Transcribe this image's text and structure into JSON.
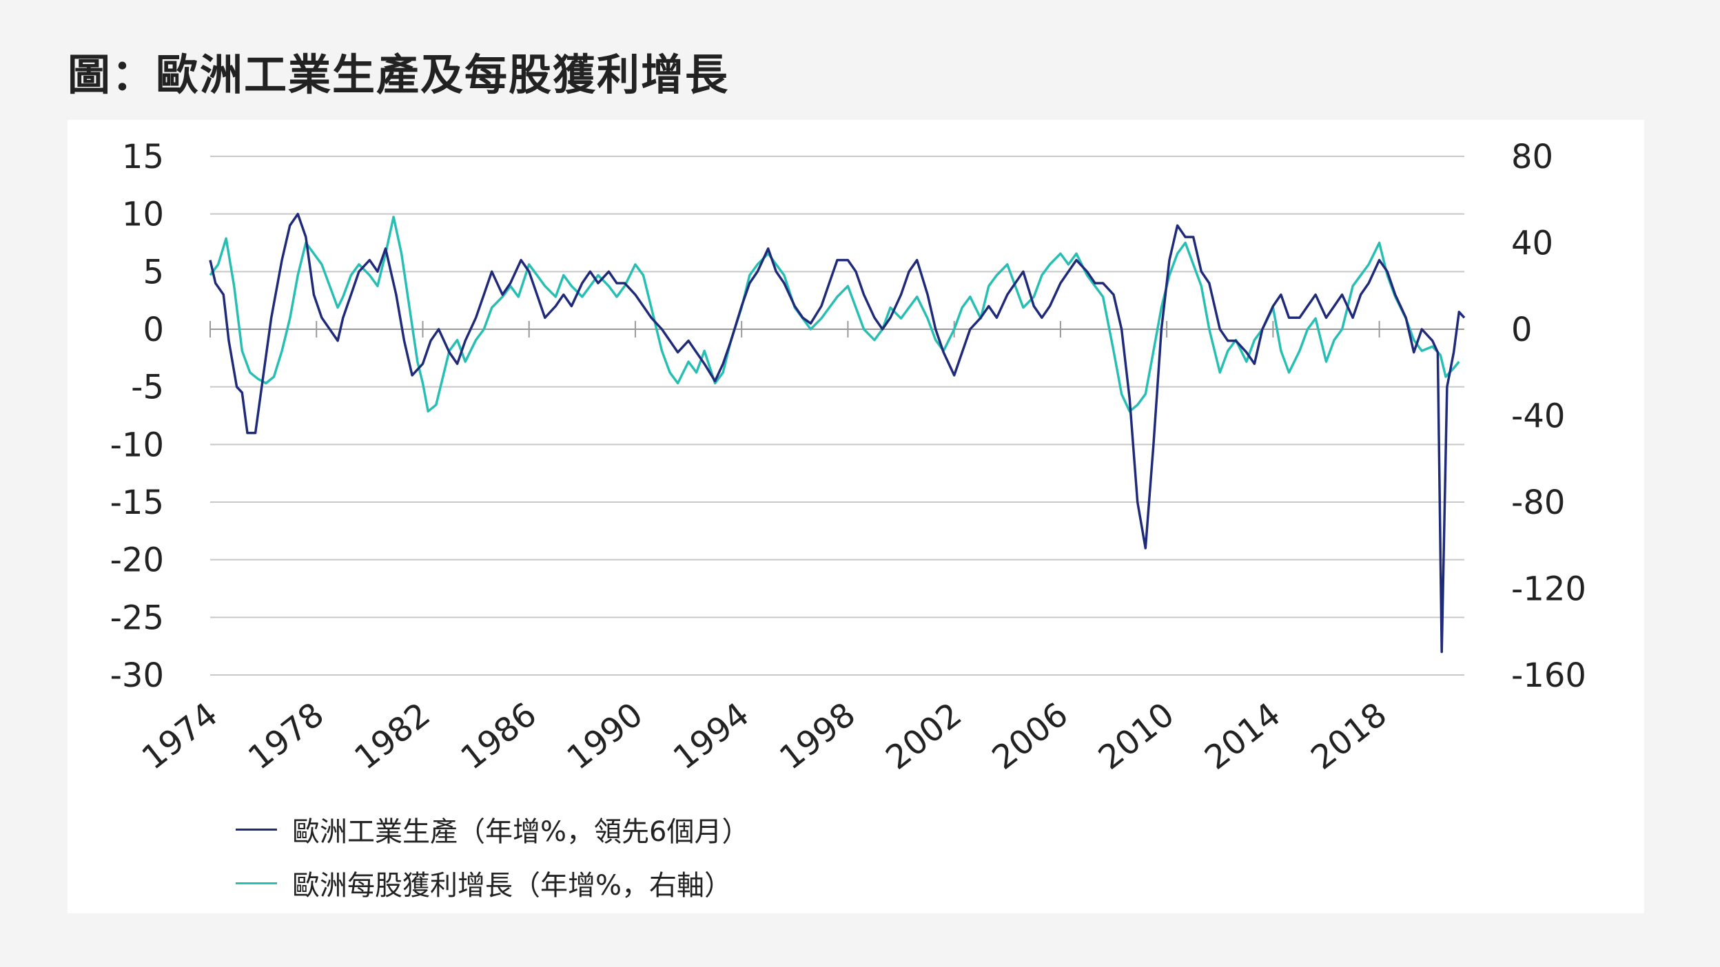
{
  "title": "圖：歐洲工業生產及每股獲利增長",
  "chart_data": {
    "type": "line",
    "title": "圖：歐洲工業生產及每股獲利增長",
    "x_ticks": [
      "1974",
      "1978",
      "1982",
      "1986",
      "1990",
      "1994",
      "1998",
      "2002",
      "2006",
      "2010",
      "2014",
      "2018"
    ],
    "xlim": [
      1974.0,
      2021.2
    ],
    "y_left": {
      "ticks": [
        "15",
        "10",
        "5",
        "0",
        "-5",
        "-10",
        "-15",
        "-20",
        "-25",
        "-30"
      ],
      "ylim": [
        -30,
        15
      ]
    },
    "y_right": {
      "ticks": [
        "80",
        "40",
        "0",
        "-40",
        "-80",
        "-120",
        "-160"
      ],
      "ylim": [
        -160,
        80
      ]
    },
    "grid": "horizontal",
    "legend_position": "bottom-left",
    "series": [
      {
        "name": "歐洲工業生產（年增%，領先6個月）",
        "axis": "left",
        "color": "#1f2a7a",
        "points": [
          [
            1974.0,
            6
          ],
          [
            1974.2,
            4
          ],
          [
            1974.5,
            3
          ],
          [
            1974.7,
            -1
          ],
          [
            1975.0,
            -5
          ],
          [
            1975.2,
            -5.5
          ],
          [
            1975.4,
            -9
          ],
          [
            1975.7,
            -9
          ],
          [
            1976.0,
            -4
          ],
          [
            1976.3,
            1
          ],
          [
            1976.7,
            6
          ],
          [
            1977.0,
            9
          ],
          [
            1977.3,
            10
          ],
          [
            1977.6,
            8
          ],
          [
            1977.9,
            3
          ],
          [
            1978.2,
            1
          ],
          [
            1978.5,
            0
          ],
          [
            1978.8,
            -1
          ],
          [
            1979.0,
            1
          ],
          [
            1979.3,
            3
          ],
          [
            1979.6,
            5
          ],
          [
            1980.0,
            6
          ],
          [
            1980.3,
            5
          ],
          [
            1980.6,
            7
          ],
          [
            1981.0,
            3
          ],
          [
            1981.3,
            -1
          ],
          [
            1981.6,
            -4
          ],
          [
            1982.0,
            -3
          ],
          [
            1982.3,
            -1
          ],
          [
            1982.6,
            0
          ],
          [
            1983.0,
            -2
          ],
          [
            1983.3,
            -3
          ],
          [
            1983.6,
            -1
          ],
          [
            1984.0,
            1
          ],
          [
            1984.3,
            3
          ],
          [
            1984.6,
            5
          ],
          [
            1985.0,
            3
          ],
          [
            1985.3,
            4
          ],
          [
            1985.7,
            6
          ],
          [
            1986.0,
            5
          ],
          [
            1986.3,
            3
          ],
          [
            1986.6,
            1
          ],
          [
            1987.0,
            2
          ],
          [
            1987.3,
            3
          ],
          [
            1987.6,
            2
          ],
          [
            1988.0,
            4
          ],
          [
            1988.3,
            5
          ],
          [
            1988.6,
            4
          ],
          [
            1989.0,
            5
          ],
          [
            1989.3,
            4
          ],
          [
            1989.6,
            4
          ],
          [
            1990.0,
            3
          ],
          [
            1990.3,
            2
          ],
          [
            1990.6,
            1
          ],
          [
            1991.0,
            0
          ],
          [
            1991.3,
            -1
          ],
          [
            1991.6,
            -2
          ],
          [
            1992.0,
            -1
          ],
          [
            1992.3,
            -2
          ],
          [
            1992.6,
            -3
          ],
          [
            1993.0,
            -4.5
          ],
          [
            1993.3,
            -3
          ],
          [
            1993.6,
            -1
          ],
          [
            1994.0,
            2
          ],
          [
            1994.3,
            4
          ],
          [
            1994.6,
            5
          ],
          [
            1995.0,
            7
          ],
          [
            1995.3,
            5
          ],
          [
            1995.6,
            4
          ],
          [
            1996.0,
            2
          ],
          [
            1996.3,
            1
          ],
          [
            1996.6,
            0.5
          ],
          [
            1997.0,
            2
          ],
          [
            1997.3,
            4
          ],
          [
            1997.6,
            6
          ],
          [
            1998.0,
            6
          ],
          [
            1998.3,
            5
          ],
          [
            1998.6,
            3
          ],
          [
            1999.0,
            1
          ],
          [
            1999.3,
            0
          ],
          [
            1999.6,
            1
          ],
          [
            2000.0,
            3
          ],
          [
            2000.3,
            5
          ],
          [
            2000.6,
            6
          ],
          [
            2001.0,
            3
          ],
          [
            2001.3,
            0
          ],
          [
            2001.6,
            -2
          ],
          [
            2002.0,
            -4
          ],
          [
            2002.3,
            -2
          ],
          [
            2002.6,
            0
          ],
          [
            2003.0,
            1
          ],
          [
            2003.3,
            2
          ],
          [
            2003.6,
            1
          ],
          [
            2004.0,
            3
          ],
          [
            2004.3,
            4
          ],
          [
            2004.6,
            5
          ],
          [
            2005.0,
            2
          ],
          [
            2005.3,
            1
          ],
          [
            2005.6,
            2
          ],
          [
            2006.0,
            4
          ],
          [
            2006.3,
            5
          ],
          [
            2006.6,
            6
          ],
          [
            2007.0,
            5
          ],
          [
            2007.3,
            4
          ],
          [
            2007.6,
            4
          ],
          [
            2008.0,
            3
          ],
          [
            2008.3,
            0
          ],
          [
            2008.6,
            -6
          ],
          [
            2008.9,
            -15
          ],
          [
            2009.2,
            -19
          ],
          [
            2009.5,
            -10
          ],
          [
            2009.8,
            0
          ],
          [
            2010.1,
            6
          ],
          [
            2010.4,
            9
          ],
          [
            2010.7,
            8
          ],
          [
            2011.0,
            8
          ],
          [
            2011.3,
            5
          ],
          [
            2011.6,
            4
          ],
          [
            2012.0,
            0
          ],
          [
            2012.3,
            -1
          ],
          [
            2012.6,
            -1
          ],
          [
            2013.0,
            -2
          ],
          [
            2013.3,
            -3
          ],
          [
            2013.6,
            0
          ],
          [
            2014.0,
            2
          ],
          [
            2014.3,
            3
          ],
          [
            2014.6,
            1
          ],
          [
            2015.0,
            1
          ],
          [
            2015.3,
            2
          ],
          [
            2015.6,
            3
          ],
          [
            2016.0,
            1
          ],
          [
            2016.3,
            2
          ],
          [
            2016.6,
            3
          ],
          [
            2017.0,
            1
          ],
          [
            2017.3,
            3
          ],
          [
            2017.6,
            4
          ],
          [
            2018.0,
            6
          ],
          [
            2018.3,
            5
          ],
          [
            2018.6,
            3
          ],
          [
            2019.0,
            1
          ],
          [
            2019.3,
            -2
          ],
          [
            2019.6,
            0
          ],
          [
            2020.0,
            -1
          ],
          [
            2020.2,
            -2
          ],
          [
            2020.35,
            -28
          ],
          [
            2020.55,
            -5
          ],
          [
            2020.8,
            -2
          ],
          [
            2021.0,
            1.5
          ],
          [
            2021.2,
            1
          ]
        ]
      },
      {
        "name": "歐洲每股獲利增長（年增%，右軸）",
        "axis": "right",
        "color": "#27bfb3",
        "points": [
          [
            1974.0,
            25
          ],
          [
            1974.3,
            30
          ],
          [
            1974.6,
            42
          ],
          [
            1974.9,
            20
          ],
          [
            1975.2,
            -10
          ],
          [
            1975.5,
            -20
          ],
          [
            1975.8,
            -23
          ],
          [
            1976.1,
            -25
          ],
          [
            1976.4,
            -22
          ],
          [
            1976.7,
            -10
          ],
          [
            1977.0,
            5
          ],
          [
            1977.3,
            25
          ],
          [
            1977.6,
            40
          ],
          [
            1977.9,
            35
          ],
          [
            1978.2,
            30
          ],
          [
            1978.5,
            20
          ],
          [
            1978.8,
            10
          ],
          [
            1979.0,
            15
          ],
          [
            1979.3,
            25
          ],
          [
            1979.6,
            30
          ],
          [
            1980.0,
            25
          ],
          [
            1980.3,
            20
          ],
          [
            1980.6,
            35
          ],
          [
            1980.9,
            52
          ],
          [
            1981.2,
            35
          ],
          [
            1981.5,
            10
          ],
          [
            1981.8,
            -15
          ],
          [
            1982.0,
            -25
          ],
          [
            1982.2,
            -38
          ],
          [
            1982.5,
            -35
          ],
          [
            1982.8,
            -20
          ],
          [
            1983.0,
            -10
          ],
          [
            1983.3,
            -5
          ],
          [
            1983.6,
            -15
          ],
          [
            1984.0,
            -5
          ],
          [
            1984.3,
            0
          ],
          [
            1984.6,
            10
          ],
          [
            1985.0,
            15
          ],
          [
            1985.3,
            20
          ],
          [
            1985.6,
            15
          ],
          [
            1986.0,
            30
          ],
          [
            1986.3,
            25
          ],
          [
            1986.6,
            20
          ],
          [
            1987.0,
            15
          ],
          [
            1987.3,
            25
          ],
          [
            1987.6,
            20
          ],
          [
            1988.0,
            15
          ],
          [
            1988.3,
            20
          ],
          [
            1988.6,
            25
          ],
          [
            1989.0,
            20
          ],
          [
            1989.3,
            15
          ],
          [
            1989.6,
            20
          ],
          [
            1990.0,
            30
          ],
          [
            1990.3,
            25
          ],
          [
            1990.6,
            10
          ],
          [
            1991.0,
            -10
          ],
          [
            1991.3,
            -20
          ],
          [
            1991.6,
            -25
          ],
          [
            1992.0,
            -15
          ],
          [
            1992.3,
            -20
          ],
          [
            1992.6,
            -10
          ],
          [
            1993.0,
            -25
          ],
          [
            1993.3,
            -20
          ],
          [
            1993.6,
            -5
          ],
          [
            1994.0,
            10
          ],
          [
            1994.3,
            25
          ],
          [
            1994.6,
            30
          ],
          [
            1995.0,
            35
          ],
          [
            1995.3,
            30
          ],
          [
            1995.6,
            25
          ],
          [
            1996.0,
            10
          ],
          [
            1996.3,
            5
          ],
          [
            1996.6,
            0
          ],
          [
            1997.0,
            5
          ],
          [
            1997.3,
            10
          ],
          [
            1997.6,
            15
          ],
          [
            1998.0,
            20
          ],
          [
            1998.3,
            10
          ],
          [
            1998.6,
            0
          ],
          [
            1999.0,
            -5
          ],
          [
            1999.3,
            0
          ],
          [
            1999.6,
            10
          ],
          [
            2000.0,
            5
          ],
          [
            2000.3,
            10
          ],
          [
            2000.6,
            15
          ],
          [
            2001.0,
            5
          ],
          [
            2001.3,
            -5
          ],
          [
            2001.6,
            -10
          ],
          [
            2002.0,
            0
          ],
          [
            2002.3,
            10
          ],
          [
            2002.6,
            15
          ],
          [
            2003.0,
            5
          ],
          [
            2003.3,
            20
          ],
          [
            2003.6,
            25
          ],
          [
            2004.0,
            30
          ],
          [
            2004.3,
            20
          ],
          [
            2004.6,
            10
          ],
          [
            2005.0,
            15
          ],
          [
            2005.3,
            25
          ],
          [
            2005.6,
            30
          ],
          [
            2006.0,
            35
          ],
          [
            2006.3,
            30
          ],
          [
            2006.6,
            35
          ],
          [
            2007.0,
            25
          ],
          [
            2007.3,
            20
          ],
          [
            2007.6,
            15
          ],
          [
            2008.0,
            -10
          ],
          [
            2008.3,
            -30
          ],
          [
            2008.6,
            -38
          ],
          [
            2008.9,
            -35
          ],
          [
            2009.2,
            -30
          ],
          [
            2009.5,
            -10
          ],
          [
            2009.8,
            10
          ],
          [
            2010.1,
            25
          ],
          [
            2010.4,
            35
          ],
          [
            2010.7,
            40
          ],
          [
            2011.0,
            30
          ],
          [
            2011.3,
            20
          ],
          [
            2011.6,
            0
          ],
          [
            2012.0,
            -20
          ],
          [
            2012.3,
            -10
          ],
          [
            2012.6,
            -5
          ],
          [
            2013.0,
            -15
          ],
          [
            2013.3,
            -5
          ],
          [
            2013.6,
            0
          ],
          [
            2014.0,
            10
          ],
          [
            2014.3,
            -10
          ],
          [
            2014.6,
            -20
          ],
          [
            2015.0,
            -10
          ],
          [
            2015.3,
            0
          ],
          [
            2015.6,
            5
          ],
          [
            2016.0,
            -15
          ],
          [
            2016.3,
            -5
          ],
          [
            2016.6,
            0
          ],
          [
            2017.0,
            20
          ],
          [
            2017.3,
            25
          ],
          [
            2017.6,
            30
          ],
          [
            2018.0,
            40
          ],
          [
            2018.3,
            25
          ],
          [
            2018.6,
            15
          ],
          [
            2019.0,
            5
          ],
          [
            2019.3,
            -5
          ],
          [
            2019.6,
            -10
          ],
          [
            2020.0,
            -8
          ],
          [
            2020.3,
            -12
          ],
          [
            2020.5,
            -22
          ],
          [
            2020.8,
            -18
          ],
          [
            2021.0,
            -15
          ]
        ]
      }
    ]
  }
}
